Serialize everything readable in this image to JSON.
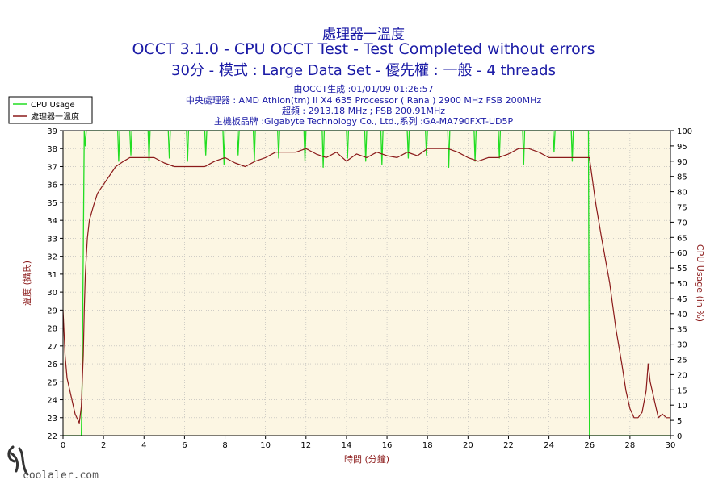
{
  "header": {
    "title": "處理器一溫度",
    "line1": "OCCT 3.1.0 - CPU OCCT Test - Test Completed without errors",
    "line2": "30分 - 模式 : Large Data Set - 優先權 : 一般 - 4 threads"
  },
  "info": {
    "generated": "由OCCT生成 :01/01/09 01:26:57",
    "cpu": "中央處理器 : AMD Athlon(tm) II X4 635 Processor ( Rana ) 2900 MHz FSB 200MHz",
    "oc": "超頻 : 2913.18 MHz ; FSB 200.91MHz",
    "board": "主機板品牌 :Gigabyte Technology Co., Ltd.,系列 :GA-MA790FXT-UD5P"
  },
  "watermark": {
    "text": "coolaler.com"
  },
  "colors": {
    "temperature": "#8b1a1a",
    "cpu_usage": "#22dd22",
    "plot_bg": "#fcf6e3",
    "grid": "#b4b4b4",
    "title": "#1a1aa6"
  },
  "chart_data": {
    "type": "line",
    "xlabel": "時間 (分鐘)",
    "ylabel": "溫度 (攝氏)",
    "y2label": "CPU Usage (in %)",
    "xlim": [
      0,
      30
    ],
    "ylim": [
      22,
      39
    ],
    "y2lim": [
      0,
      100
    ],
    "xticks": [
      0,
      2,
      4,
      6,
      8,
      10,
      12,
      14,
      16,
      18,
      20,
      22,
      24,
      26,
      28,
      30
    ],
    "yticks": [
      22,
      23,
      24,
      25,
      26,
      27,
      28,
      29,
      30,
      31,
      32,
      33,
      34,
      35,
      36,
      37,
      38,
      39
    ],
    "y2ticks": [
      0,
      5,
      10,
      15,
      20,
      25,
      30,
      35,
      40,
      45,
      50,
      55,
      60,
      65,
      70,
      75,
      80,
      85,
      90,
      95,
      100
    ],
    "grid": true,
    "legend_position": "top-left",
    "series": [
      {
        "name": "CPU Usage",
        "axis": "right",
        "color": "#22dd22",
        "x": [
          0,
          0.9,
          0.95,
          1.05,
          1.1,
          1.15,
          1.5,
          2.7,
          2.75,
          2.8,
          3.3,
          3.35,
          3.4,
          4.2,
          4.25,
          4.3,
          5.2,
          5.25,
          5.3,
          6.1,
          6.15,
          6.2,
          7.0,
          7.05,
          7.1,
          7.9,
          7.95,
          8.0,
          8.6,
          8.65,
          8.7,
          9.4,
          9.45,
          9.5,
          10.6,
          10.65,
          10.7,
          11.9,
          11.95,
          12.0,
          12.8,
          12.85,
          12.9,
          14.0,
          14.05,
          14.1,
          14.9,
          14.95,
          15.0,
          15.7,
          15.75,
          15.8,
          17.0,
          17.05,
          17.1,
          17.9,
          17.95,
          18.0,
          19.0,
          19.05,
          19.1,
          20.3,
          20.35,
          20.4,
          21.5,
          21.55,
          21.6,
          22.7,
          22.75,
          22.8,
          24.2,
          24.25,
          24.3,
          25.1,
          25.15,
          25.2,
          25.95,
          26.0,
          26.05,
          30
        ],
        "y": [
          0,
          0,
          20,
          100,
          95,
          100,
          100,
          100,
          90,
          100,
          100,
          92,
          100,
          100,
          90,
          100,
          100,
          91,
          100,
          100,
          90,
          100,
          100,
          92,
          100,
          100,
          89,
          100,
          100,
          92,
          100,
          100,
          90,
          100,
          100,
          91,
          100,
          100,
          90,
          100,
          100,
          88,
          100,
          100,
          91,
          100,
          100,
          90,
          100,
          100,
          89,
          100,
          100,
          91,
          100,
          100,
          92,
          100,
          100,
          88,
          100,
          100,
          90,
          100,
          100,
          91,
          100,
          100,
          89,
          100,
          100,
          93,
          100,
          100,
          90,
          100,
          100,
          0,
          0,
          0
        ]
      },
      {
        "name": "處理器一溫度",
        "axis": "left",
        "color": "#8b1a1a",
        "x": [
          0,
          0.1,
          0.2,
          0.4,
          0.6,
          0.8,
          0.9,
          1.0,
          1.05,
          1.1,
          1.2,
          1.3,
          1.5,
          1.7,
          2.0,
          2.3,
          2.6,
          3.0,
          3.3,
          3.6,
          4.0,
          4.5,
          5.0,
          5.5,
          6.0,
          6.5,
          7.0,
          7.5,
          8.0,
          8.5,
          9.0,
          9.5,
          10.0,
          10.5,
          11.0,
          11.5,
          12.0,
          12.5,
          13.0,
          13.5,
          14.0,
          14.5,
          15.0,
          15.5,
          16.0,
          16.5,
          17.0,
          17.5,
          18.0,
          18.5,
          19.0,
          19.5,
          20.0,
          20.5,
          21.0,
          21.5,
          22.0,
          22.5,
          23.0,
          23.5,
          24.0,
          24.5,
          25.0,
          25.5,
          26.0,
          26.3,
          26.6,
          27.0,
          27.3,
          27.6,
          27.8,
          28.0,
          28.2,
          28.4,
          28.6,
          28.8,
          28.9,
          29.0,
          29.2,
          29.4,
          29.6,
          29.8,
          30.0
        ],
        "y": [
          29,
          26.5,
          25.2,
          24.2,
          23.2,
          22.7,
          23.6,
          26.5,
          29.0,
          31.0,
          33.0,
          34.0,
          34.8,
          35.5,
          36.0,
          36.5,
          37.0,
          37.3,
          37.5,
          37.5,
          37.5,
          37.5,
          37.2,
          37.0,
          37.0,
          37.0,
          37.0,
          37.3,
          37.5,
          37.2,
          37.0,
          37.3,
          37.5,
          37.8,
          37.8,
          37.8,
          38.0,
          37.7,
          37.5,
          37.8,
          37.3,
          37.7,
          37.5,
          37.8,
          37.6,
          37.5,
          37.8,
          37.6,
          38.0,
          38.0,
          38.0,
          37.8,
          37.5,
          37.3,
          37.5,
          37.5,
          37.7,
          38.0,
          38.0,
          37.8,
          37.5,
          37.5,
          37.5,
          37.5,
          37.5,
          35.0,
          33.0,
          30.5,
          28.0,
          26.0,
          24.5,
          23.5,
          23.0,
          23.0,
          23.3,
          24.5,
          26.0,
          25.0,
          24.0,
          23.0,
          23.2,
          23.0,
          23.0
        ]
      }
    ]
  }
}
